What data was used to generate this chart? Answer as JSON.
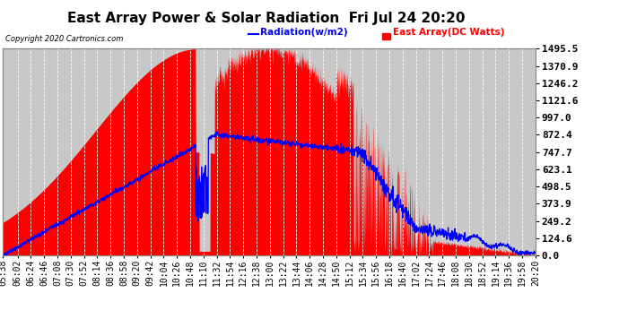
{
  "title": "East Array Power & Solar Radiation  Fri Jul 24 20:20",
  "copyright": "Copyright 2020 Cartronics.com",
  "legend_radiation": "Radiation(w/m2)",
  "legend_east_array": "East Array(DC Watts)",
  "ylabel_right_values": [
    1495.5,
    1370.9,
    1246.2,
    1121.6,
    997.0,
    872.4,
    747.7,
    623.1,
    498.5,
    373.9,
    249.2,
    124.6,
    0.0
  ],
  "ymax": 1495.5,
  "ymin": 0.0,
  "background_color": "#ffffff",
  "plot_bg_color": "#c8c8c8",
  "grid_color": "#ffffff",
  "fill_color": "#ff0000",
  "line_color_radiation": "#0000ff",
  "title_fontsize": 11,
  "tick_fontsize": 7,
  "x_tick_labels": [
    "05:38",
    "06:02",
    "06:24",
    "06:46",
    "07:08",
    "07:30",
    "07:52",
    "08:14",
    "08:36",
    "08:58",
    "09:20",
    "09:42",
    "10:04",
    "10:26",
    "10:48",
    "11:10",
    "11:32",
    "11:54",
    "12:16",
    "12:38",
    "13:00",
    "13:22",
    "13:44",
    "14:06",
    "14:28",
    "14:50",
    "15:12",
    "15:34",
    "15:56",
    "16:18",
    "16:40",
    "17:02",
    "17:24",
    "17:46",
    "18:08",
    "18:30",
    "18:52",
    "19:14",
    "19:36",
    "19:58",
    "20:20"
  ]
}
